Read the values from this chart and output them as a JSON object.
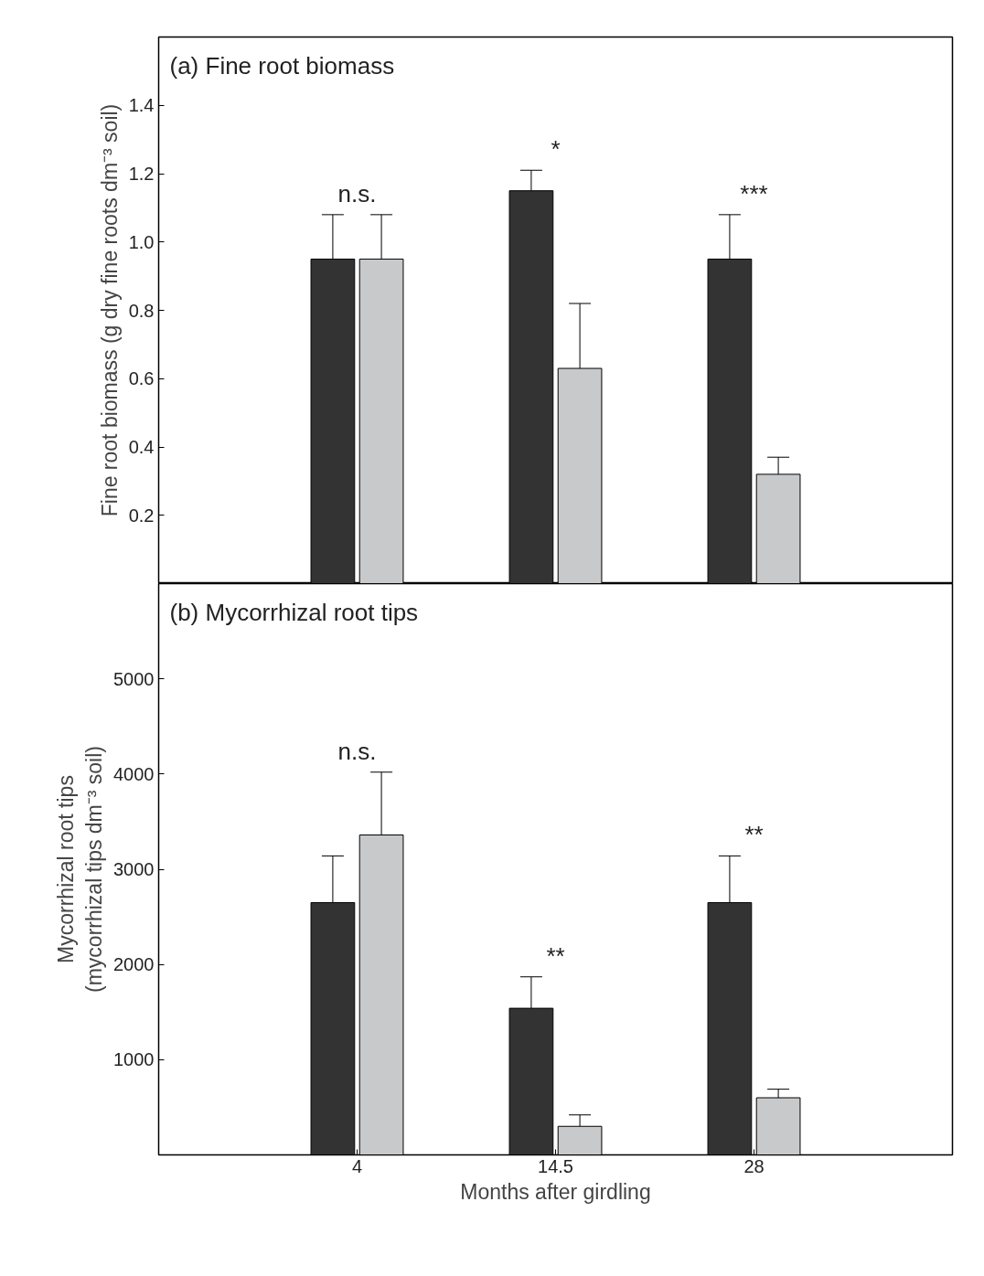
{
  "chart_data": [
    {
      "type": "bar",
      "title": "(a) Fine root biomass",
      "ylabel": "Fine root biomass (g dry fine roots dm⁻³ soil)",
      "categories": [
        "4",
        "14.5",
        "28"
      ],
      "ylim": [
        0,
        1.6
      ],
      "yticks": [
        0.2,
        0.4,
        0.6,
        0.8,
        {
          "value": 1,
          "label": "1.0"
        },
        1.2,
        1.4
      ],
      "tick_labels": "y",
      "grid": false,
      "series": [
        {
          "color": "#333333",
          "values": [
            0.95,
            1.15,
            0.95
          ],
          "errors": [
            [
              0.95,
              1.08
            ],
            [
              1.15,
              1.21
            ],
            [
              0.95,
              1.08
            ]
          ]
        },
        {
          "color": "#c8c9cb",
          "values": [
            0.95,
            0.63,
            0.32
          ],
          "errors": [
            [
              0.95,
              1.08
            ],
            [
              0.63,
              0.82
            ],
            [
              0.32,
              0.37
            ]
          ]
        }
      ],
      "annotations": [
        "n.s.",
        "*",
        "***"
      ]
    },
    {
      "type": "bar",
      "title": "(b) Mycorrhizal root tips",
      "ylabel": "Mycorrhizal root tips\n(mycorrhizal tips dm⁻³ soil)",
      "xlabel": "Months after girdling",
      "categories": [
        "4",
        "14.5",
        "28"
      ],
      "ylim": [
        0,
        6000
      ],
      "yticks": [
        1000,
        2000,
        3000,
        4000,
        5000
      ],
      "grid": false,
      "series": [
        {
          "color": "#333333",
          "values": [
            2650,
            1540,
            2650
          ],
          "errors": [
            [
              2650,
              3140
            ],
            [
              1540,
              1870
            ],
            [
              2650,
              3140
            ]
          ]
        },
        {
          "color": "#c8c9cb",
          "values": [
            3360,
            300,
            600
          ],
          "errors": [
            [
              3360,
              4020
            ],
            [
              300,
              420
            ],
            [
              600,
              690
            ]
          ]
        }
      ],
      "annotations": [
        "n.s.",
        "**",
        "**"
      ]
    }
  ]
}
